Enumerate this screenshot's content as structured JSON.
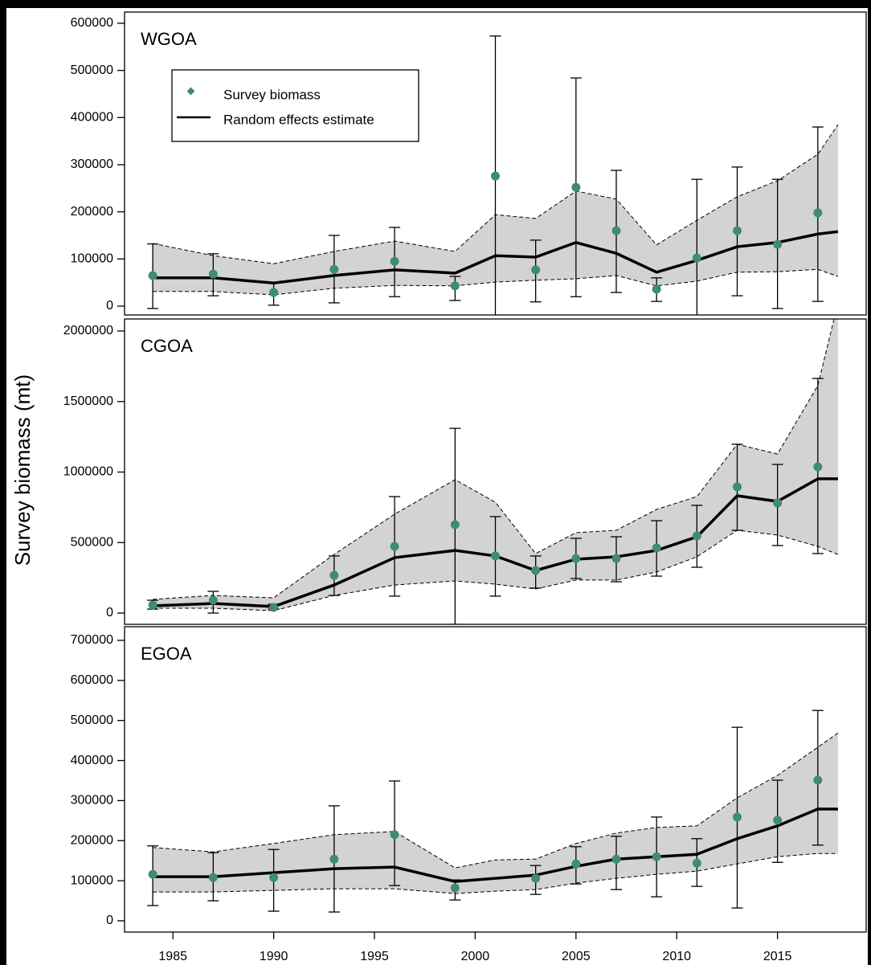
{
  "chart_data": [
    {
      "type": "line",
      "label": "WGOA",
      "xlim": [
        1982.6,
        2019.4
      ],
      "ylim": [
        -18750,
        623800
      ],
      "yticks": [
        0,
        100000,
        200000,
        300000,
        400000,
        500000,
        600000
      ],
      "series": [
        {
          "name": "Survey biomass",
          "color": "#3f8c72",
          "x": [
            1984,
            1987,
            1990,
            1993,
            1996,
            1999,
            2001,
            2003,
            2005,
            2007,
            2009,
            2011,
            2013,
            2015,
            2017
          ],
          "values": [
            64800,
            68000,
            29000,
            78000,
            95000,
            43000,
            276000,
            77000,
            252000,
            160000,
            36000,
            102000,
            160000,
            131000,
            198000
          ],
          "upper": [
            132000,
            111000,
            49000,
            150000,
            167000,
            63000,
            573000,
            140000,
            484000,
            288000,
            60000,
            269000,
            295000,
            269000,
            380000
          ],
          "lower": [
            -5000,
            22000,
            2000,
            7000,
            20000,
            12000,
            -20000,
            9000,
            20000,
            29000,
            10000,
            -20000,
            22000,
            -5000,
            10000
          ]
        },
        {
          "name": "Random effects estimate",
          "color": "#000000",
          "x": [
            1984,
            1987,
            1990,
            1993,
            1996,
            1999,
            2001,
            2003,
            2005,
            2007,
            2009,
            2011,
            2013,
            2015,
            2017,
            2018
          ],
          "values": [
            60000,
            60000,
            49000,
            65000,
            77000,
            70000,
            107000,
            104000,
            135000,
            112000,
            72000,
            97000,
            126000,
            135000,
            153000,
            158000
          ],
          "upper": [
            133000,
            107000,
            90000,
            116000,
            138000,
            116000,
            194000,
            186000,
            244000,
            227000,
            130000,
            182000,
            232000,
            266000,
            322000,
            385000
          ],
          "lower": [
            31000,
            31000,
            24000,
            38000,
            44000,
            43000,
            51000,
            55000,
            58000,
            65000,
            43000,
            53000,
            72000,
            73000,
            78000,
            63000
          ]
        }
      ]
    },
    {
      "type": "line",
      "label": "CGOA",
      "ylabel": "Survey biomass (mt)",
      "xlim": [
        1982.6,
        2019.4
      ],
      "ylim": [
        -79800,
        2085500
      ],
      "yticks": [
        0,
        500000,
        1000000,
        1500000,
        2000000
      ],
      "series": [
        {
          "color": "#3f8c72",
          "x": [
            1984,
            1987,
            1990,
            1993,
            1996,
            1999,
            2001,
            2003,
            2005,
            2007,
            2009,
            2011,
            2013,
            2015,
            2017
          ],
          "values": [
            57000,
            91000,
            40000,
            268000,
            473000,
            627000,
            405000,
            302000,
            387000,
            387000,
            462000,
            547000,
            895000,
            781000,
            1037000
          ],
          "upper": [
            91000,
            154000,
            63000,
            405000,
            826000,
            1310000,
            684000,
            405000,
            530000,
            541000,
            655000,
            764000,
            1197000,
            1054000,
            1664000
          ],
          "lower": [
            28000,
            0,
            28000,
            125000,
            120000,
            -80000,
            120000,
            177000,
            245000,
            222000,
            262000,
            325000,
            587000,
            479000,
            422000
          ]
        },
        {
          "color": "#000000",
          "x": [
            1984,
            1987,
            1990,
            1993,
            1996,
            1999,
            2001,
            2003,
            2005,
            2007,
            2009,
            2011,
            2013,
            2015,
            2017,
            2018
          ],
          "values": [
            51000,
            68000,
            46000,
            199000,
            393000,
            444000,
            405000,
            302000,
            382000,
            399000,
            444000,
            541000,
            832000,
            792000,
            952000,
            952000
          ],
          "upper": [
            97000,
            125000,
            108000,
            416000,
            701000,
            946000,
            786000,
            422000,
            570000,
            587000,
            735000,
            826000,
            1197000,
            1128000,
            1613000,
            2200000
          ],
          "lower": [
            34000,
            34000,
            17000,
            125000,
            199000,
            228000,
            205000,
            171000,
            234000,
            234000,
            291000,
            399000,
            587000,
            553000,
            473000,
            416000
          ]
        }
      ]
    },
    {
      "type": "line",
      "label": "EGOA",
      "xlim": [
        1982.6,
        2019.4
      ],
      "ylim": [
        -28080,
        734000
      ],
      "yticks": [
        0,
        100000,
        200000,
        300000,
        400000,
        500000,
        600000,
        700000
      ],
      "xticks": [
        1985,
        1990,
        1995,
        2000,
        2005,
        2010,
        2015
      ],
      "series": [
        {
          "color": "#3f8c72",
          "x": [
            1984,
            1987,
            1990,
            1993,
            1996,
            1999,
            2003,
            2005,
            2007,
            2009,
            2011,
            2013,
            2015,
            2017
          ],
          "values": [
            116000,
            108000,
            108000,
            154000,
            215000,
            82000,
            106000,
            142000,
            154000,
            160000,
            144000,
            259000,
            251000,
            351000
          ],
          "upper": [
            187000,
            170000,
            178000,
            287000,
            349000,
            102000,
            138000,
            185000,
            211000,
            259000,
            205000,
            483000,
            351000,
            525000
          ],
          "lower": [
            38000,
            50000,
            24000,
            22000,
            88000,
            52000,
            66000,
            92000,
            78000,
            60000,
            86000,
            32000,
            146000,
            189000
          ]
        },
        {
          "color": "#000000",
          "x": [
            1984,
            1987,
            1990,
            1993,
            1996,
            1999,
            2001,
            2003,
            2005,
            2007,
            2009,
            2011,
            2013,
            2015,
            2017,
            2018
          ],
          "values": [
            110000,
            110000,
            120000,
            130000,
            134000,
            98000,
            106000,
            114000,
            136000,
            154000,
            160000,
            166000,
            205000,
            237000,
            279000,
            279000
          ],
          "upper": [
            183000,
            172000,
            193000,
            215000,
            223000,
            132000,
            152000,
            154000,
            193000,
            219000,
            233000,
            237000,
            307000,
            363000,
            433000,
            469000
          ],
          "lower": [
            72000,
            72000,
            76000,
            80000,
            80000,
            68000,
            74000,
            78000,
            94000,
            106000,
            116000,
            124000,
            142000,
            160000,
            168000,
            168000
          ]
        }
      ]
    }
  ]
}
